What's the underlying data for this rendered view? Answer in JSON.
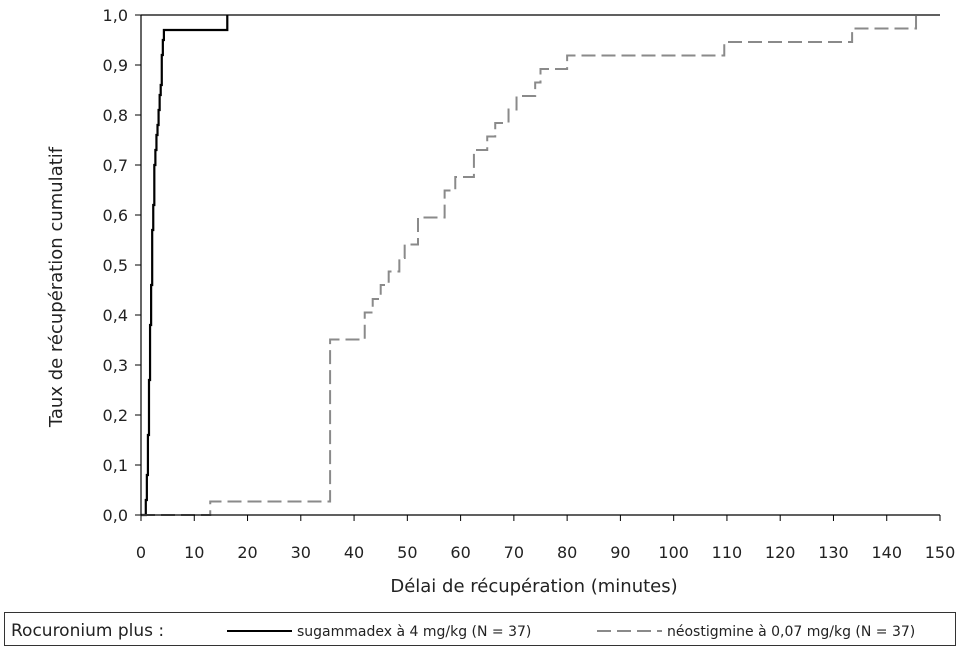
{
  "chart_data": {
    "type": "line",
    "title": "",
    "xlabel": "Délai de récupération (minutes)",
    "ylabel": "Taux de récupération cumulatif",
    "xlim": [
      0,
      150
    ],
    "ylim": [
      0,
      1.0
    ],
    "xticks": [
      "0",
      "10",
      "20",
      "30",
      "40",
      "50",
      "60",
      "70",
      "80",
      "90",
      "100",
      "110",
      "120",
      "130",
      "140",
      "150"
    ],
    "yticks": [
      "0,0",
      "0,1",
      "0,2",
      "0,3",
      "0,4",
      "0,5",
      "0,6",
      "0,7",
      "0,8",
      "0,9",
      "1,0"
    ],
    "grid": false,
    "legend_position": "bottom",
    "legend_prefix": "Rocuronium plus :",
    "series": [
      {
        "name": "sugammadex à 4 mg/kg (N = 37)",
        "style": "solid",
        "color": "#000000",
        "x": [
          0.9,
          1.1,
          1.3,
          1.5,
          1.7,
          1.9,
          2.1,
          2.3,
          2.5,
          2.7,
          2.9,
          3.1,
          3.3,
          3.5,
          3.7,
          3.9,
          4.1,
          4.3,
          4.8,
          16.2
        ],
        "y": [
          0.03,
          0.08,
          0.16,
          0.27,
          0.38,
          0.46,
          0.57,
          0.62,
          0.7,
          0.73,
          0.76,
          0.78,
          0.81,
          0.84,
          0.86,
          0.92,
          0.95,
          0.97,
          0.97,
          1.0
        ]
      },
      {
        "name": "néostigmine à 0,07 mg/kg (N = 37)",
        "style": "dashed",
        "color": "#8a8a8a",
        "x": [
          13.0,
          35.5,
          42.0,
          43.5,
          45.0,
          46.5,
          48.5,
          49.5,
          52.0,
          57.0,
          59.0,
          62.5,
          65.0,
          66.5,
          69.0,
          70.5,
          74.0,
          75.0,
          80.0,
          109.5,
          133.5,
          145.5
        ],
        "y": [
          0.027,
          0.351,
          0.405,
          0.432,
          0.46,
          0.487,
          0.514,
          0.541,
          0.595,
          0.649,
          0.676,
          0.73,
          0.757,
          0.784,
          0.811,
          0.838,
          0.865,
          0.892,
          0.919,
          0.946,
          0.973,
          1.0
        ]
      }
    ]
  }
}
